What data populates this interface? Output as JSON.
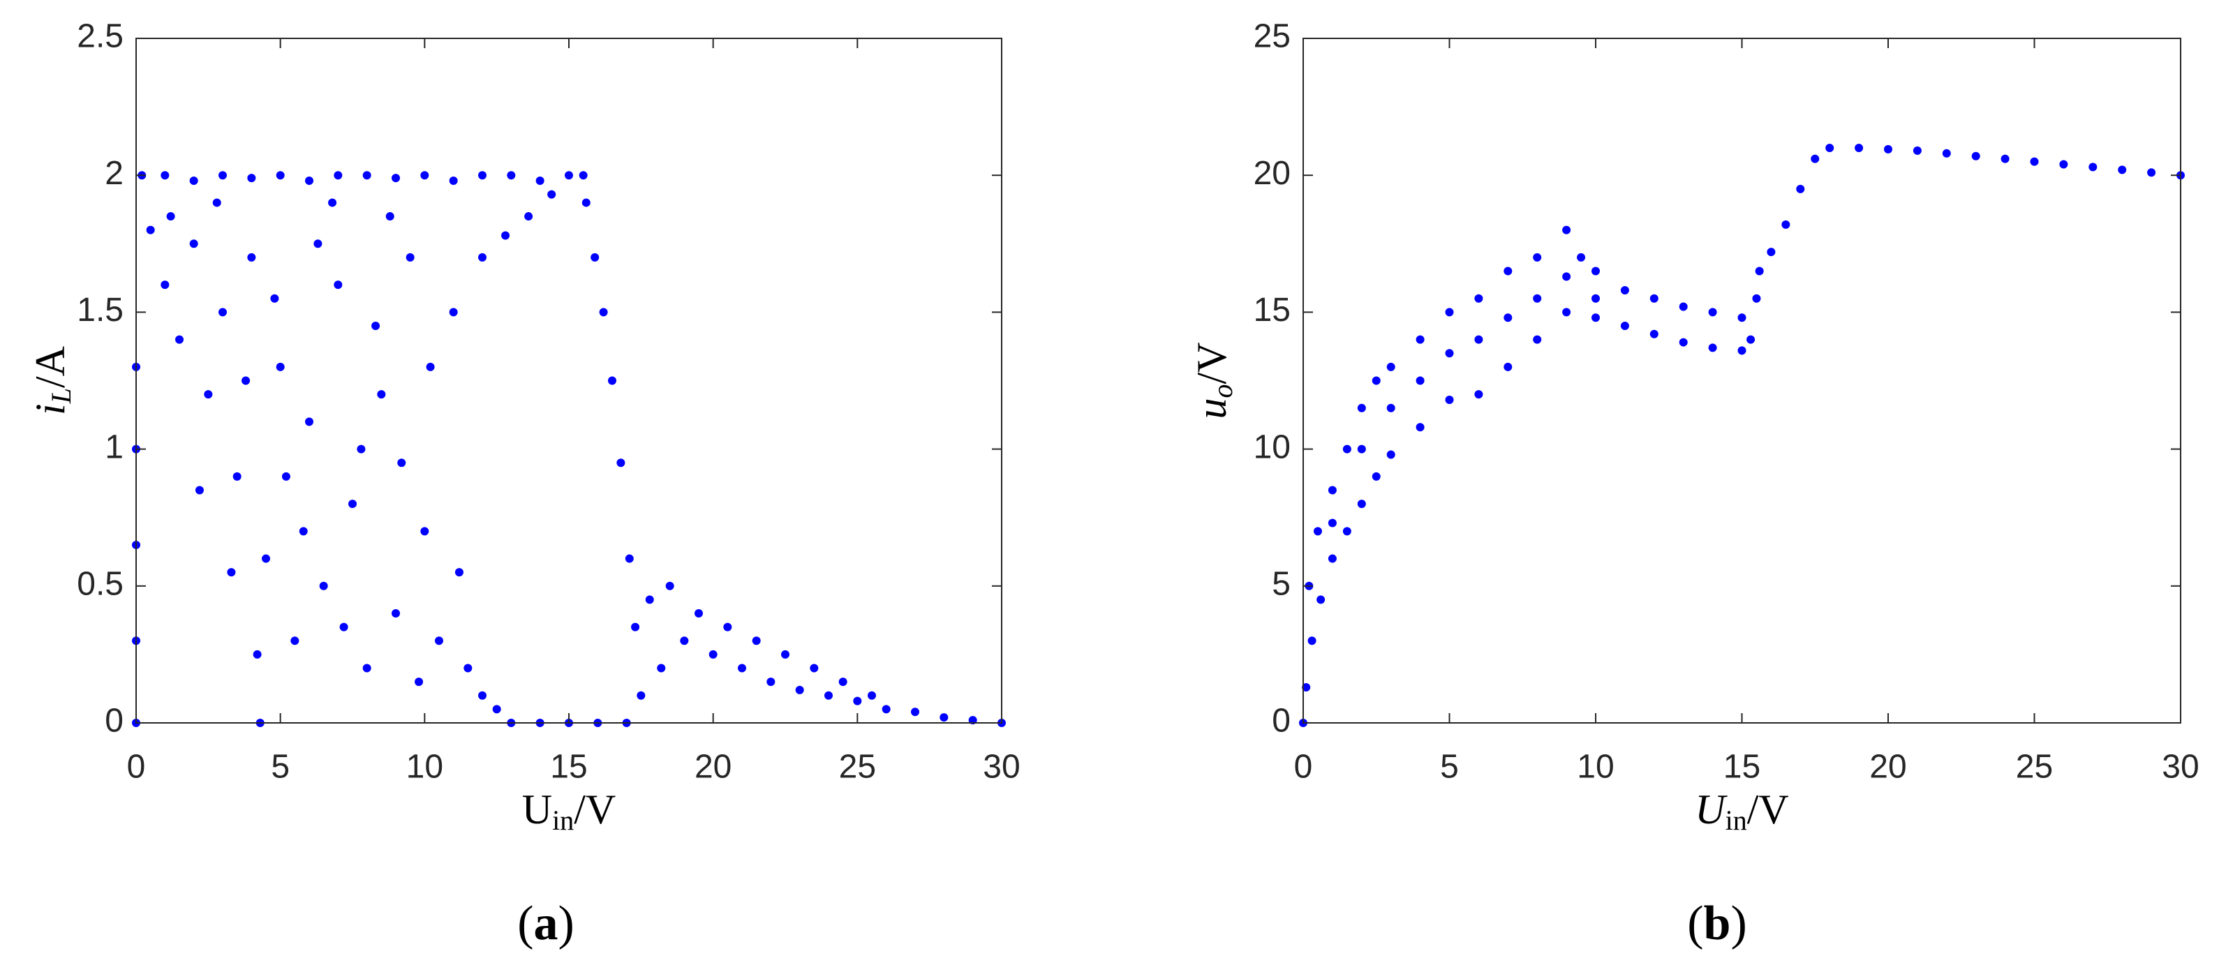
{
  "chart_data": [
    {
      "type": "scatter",
      "color": "#0000ff",
      "panel_label": [
        "(",
        "a",
        ")"
      ],
      "x_label": [
        "U",
        "in",
        "/V"
      ],
      "y_label": [
        "i",
        "L",
        "/A"
      ],
      "xlim": [
        0,
        30
      ],
      "ylim": [
        0,
        2.5
      ],
      "xticks": [
        0,
        5,
        10,
        15,
        20,
        25,
        30
      ],
      "yticks": [
        0,
        0.5,
        1,
        1.5,
        2,
        2.5
      ],
      "x": [
        0.2,
        1,
        2,
        3,
        4,
        5,
        6,
        7,
        8,
        9,
        10,
        11,
        12,
        13,
        14,
        15,
        15.5,
        0.5,
        1,
        1.5,
        2,
        2.5,
        3,
        3.5,
        4,
        4.5,
        5,
        5.5,
        6,
        6.5,
        7,
        7.5,
        8,
        8.5,
        9,
        9.5,
        10,
        10.5,
        11,
        11.5,
        12,
        12.5,
        1.2,
        2.2,
        3.3,
        4.2,
        5.2,
        6.3,
        7.2,
        8.3,
        9.2,
        10.2,
        11.2,
        2.8,
        4.8,
        6.8,
        8.8,
        3.8,
        5.8,
        7.8,
        9.8,
        12,
        12.8,
        13.6,
        14.4,
        15.6,
        15.9,
        16.2,
        16.5,
        16.8,
        17.1,
        17.3,
        17.5,
        4.3,
        13,
        14,
        15,
        16,
        17,
        0,
        17.8,
        18.2,
        18.5,
        19,
        19.5,
        20,
        20.5,
        21,
        21.5,
        22,
        22.5,
        23,
        23.5,
        24,
        24.5,
        25,
        25.5,
        26,
        27,
        28,
        29,
        30,
        0,
        0,
        0,
        0
      ],
      "y": [
        2,
        2,
        1.98,
        2,
        1.99,
        2,
        1.98,
        2,
        2,
        1.99,
        2,
        1.98,
        2,
        2,
        1.98,
        2,
        2,
        1.8,
        1.6,
        1.4,
        1.75,
        1.2,
        1.5,
        0.9,
        1.7,
        0.6,
        1.3,
        0.3,
        1.1,
        0.5,
        1.6,
        0.8,
        0.2,
        1.2,
        0.4,
        1.7,
        0.7,
        0.3,
        1.5,
        0.2,
        0.1,
        0.05,
        1.85,
        0.85,
        0.55,
        0.25,
        0.9,
        1.75,
        0.35,
        1.45,
        0.95,
        1.3,
        0.55,
        1.9,
        1.55,
        1.9,
        1.85,
        1.25,
        0.7,
        1.0,
        0.15,
        1.7,
        1.78,
        1.85,
        1.93,
        1.9,
        1.7,
        1.5,
        1.25,
        0.95,
        0.6,
        0.35,
        0.1,
        0,
        0,
        0,
        0,
        0,
        0,
        0,
        0.45,
        0.2,
        0.5,
        0.3,
        0.4,
        0.25,
        0.35,
        0.2,
        0.3,
        0.15,
        0.25,
        0.12,
        0.2,
        0.1,
        0.15,
        0.08,
        0.1,
        0.05,
        0.04,
        0.02,
        0.01,
        0,
        0.3,
        0.65,
        1,
        1.3
      ]
    },
    {
      "type": "scatter",
      "color": "#0000ff",
      "panel_label": [
        "(",
        "b",
        ")"
      ],
      "x_label": [
        "U",
        "in",
        "/V"
      ],
      "y_label": [
        "u",
        "o",
        "/V"
      ],
      "xlim": [
        0,
        30
      ],
      "ylim": [
        0,
        25
      ],
      "xticks": [
        0,
        5,
        10,
        15,
        20,
        25,
        30
      ],
      "yticks": [
        0,
        5,
        10,
        15,
        20,
        25
      ],
      "x": [
        0.1,
        0.3,
        0.6,
        1,
        1.5,
        2,
        2.5,
        3,
        4,
        5,
        6,
        7,
        8,
        9,
        0.2,
        0.5,
        1,
        1.5,
        2,
        2.5,
        3,
        4,
        5,
        6,
        7,
        8,
        9,
        9.5,
        1,
        2,
        3,
        4,
        5,
        6,
        7,
        8,
        9,
        10,
        10,
        10,
        11,
        12,
        13,
        14,
        15,
        11,
        12,
        13,
        14,
        15,
        15.3,
        15.5,
        15.6,
        16,
        16.5,
        17,
        17.5,
        18,
        19,
        20,
        21,
        22,
        23,
        24,
        25,
        26,
        27,
        28,
        29,
        30,
        0
      ],
      "y": [
        1.3,
        3,
        4.5,
        6,
        7,
        8,
        9,
        9.8,
        10.8,
        11.8,
        12,
        13,
        14,
        15,
        5,
        7,
        8.5,
        10,
        11.5,
        12.5,
        13,
        14,
        15,
        15.5,
        16.5,
        17,
        18,
        17,
        7.3,
        10,
        11.5,
        12.5,
        13.5,
        14,
        14.8,
        15.5,
        16.3,
        16.5,
        15.5,
        14.8,
        15.8,
        15.5,
        15.2,
        15,
        14.8,
        14.5,
        14.2,
        13.9,
        13.7,
        13.6,
        14,
        15.5,
        16.5,
        17.2,
        18.2,
        19.5,
        20.6,
        21,
        21,
        20.95,
        20.9,
        20.8,
        20.7,
        20.6,
        20.5,
        20.4,
        20.3,
        20.2,
        20.1,
        20,
        0
      ]
    }
  ]
}
